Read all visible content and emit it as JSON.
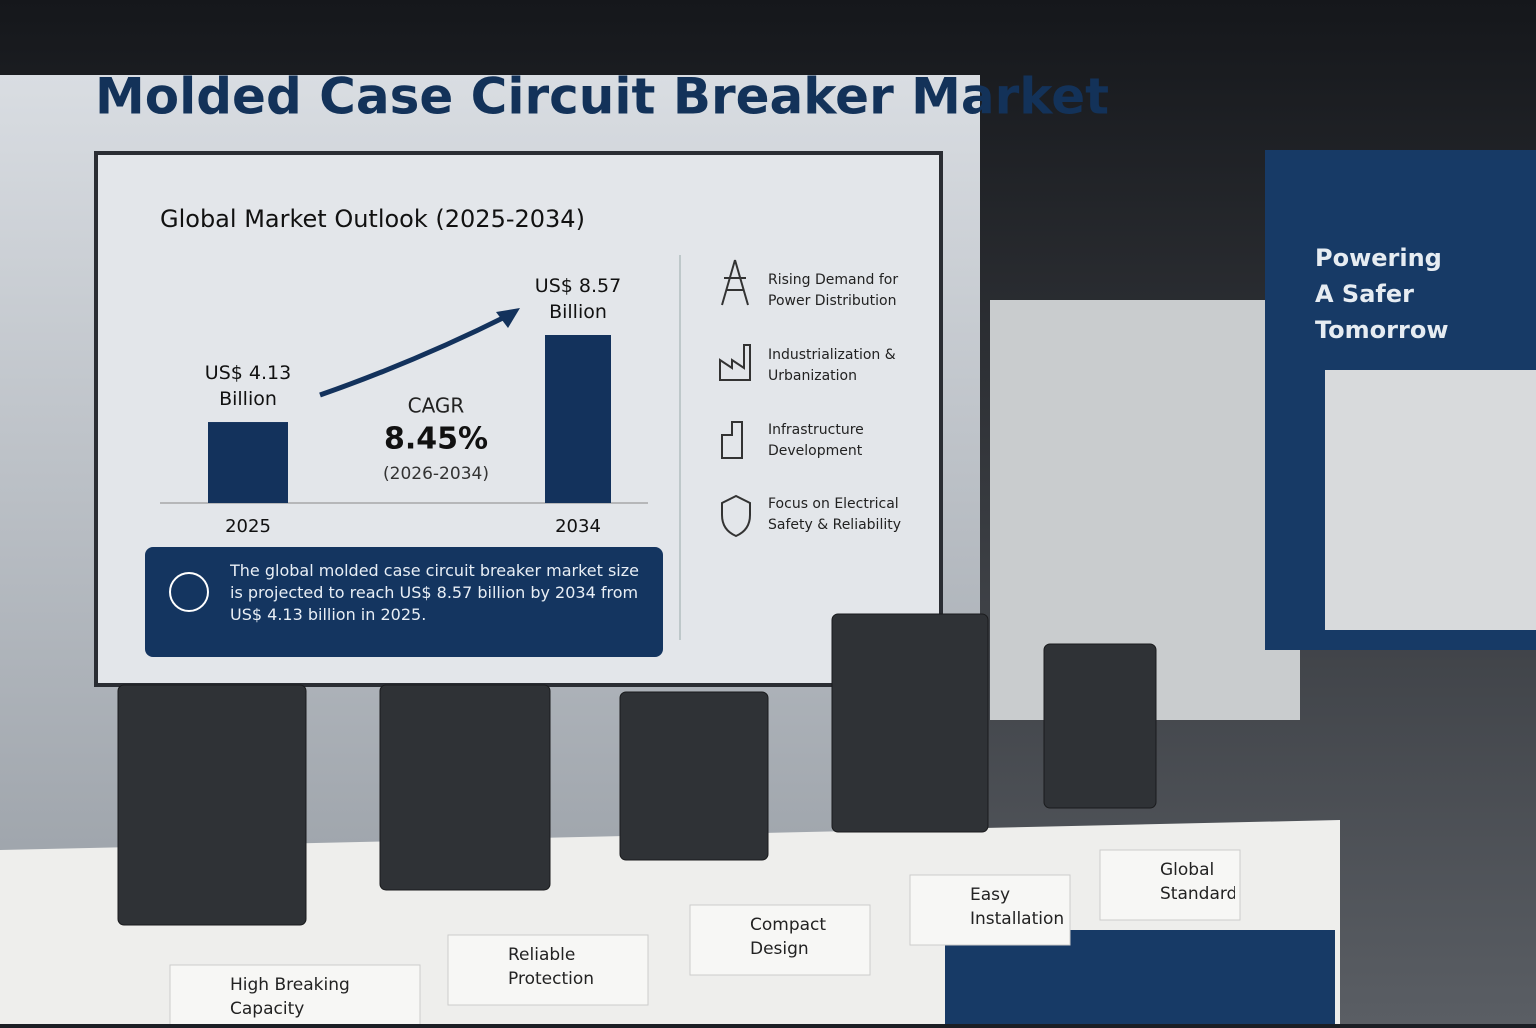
{
  "header": {
    "title": "Molded Case Circuit Breaker Market"
  },
  "chart_data": {
    "type": "bar",
    "title": "Global Market Outlook (2025-2034)",
    "categories": [
      "2025",
      "2034"
    ],
    "values": [
      4.13,
      8.57
    ],
    "value_labels": [
      "US$ 4.13 Billion",
      "US$ 8.57 Billion"
    ],
    "color": "#13325c",
    "annotation": {
      "label": "CAGR",
      "value": "8.45%",
      "period": "(2026-2034)"
    }
  },
  "drivers": [
    "Rising Demand for Power Distribution",
    "Industrialization & Urbanization",
    "Infrastructure Development",
    "Focus on Electrical Safety & Reliability"
  ],
  "note": "The global molded case circuit breaker market size is projected to reach US$ 8.57 billion by 2034 from US$ 4.13 billion in 2025.",
  "booth_sign": "Powering A Safer Tomorrow",
  "features": [
    "High Breaking Capacity",
    "Reliable Protection",
    "Compact Design",
    "Easy Installation",
    "Global Standards"
  ]
}
